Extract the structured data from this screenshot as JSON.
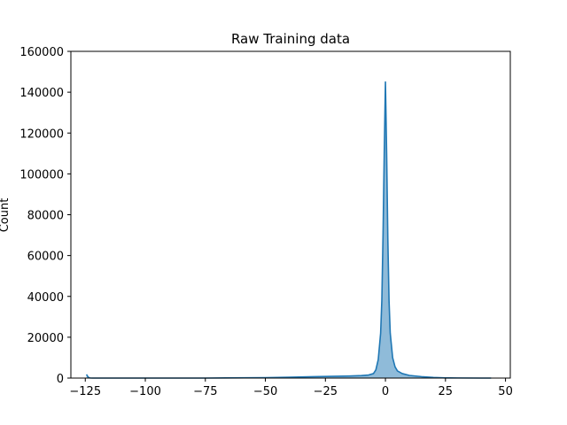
{
  "chart_data": {
    "type": "area",
    "title": "Raw Training data",
    "xlabel": "",
    "ylabel": "Count",
    "xlim": [
      -131,
      52
    ],
    "ylim": [
      0,
      160000
    ],
    "xticks": [
      -125,
      -100,
      -75,
      -50,
      -25,
      0,
      25,
      50
    ],
    "xtick_labels": [
      "−125",
      "−100",
      "−75",
      "−50",
      "−25",
      "0",
      "25",
      "50"
    ],
    "yticks": [
      0,
      20000,
      40000,
      60000,
      80000,
      100000,
      120000,
      140000,
      160000
    ],
    "ytick_labels": [
      "0",
      "20000",
      "40000",
      "60000",
      "80000",
      "100000",
      "120000",
      "140000",
      "160000"
    ],
    "grid": false,
    "series": [
      {
        "color": "#1f77b4",
        "fill_color": "#1f77b4",
        "x": [
          -124.5,
          -124,
          -123.5,
          -123,
          -122,
          -120,
          -100,
          -75,
          -50,
          -40,
          -30,
          -20,
          -15,
          -10,
          -7,
          -5,
          -4,
          -3,
          -2,
          -1.5,
          -1,
          -0.5,
          0,
          0.5,
          1,
          1.5,
          2,
          3,
          4,
          5,
          7,
          10,
          15,
          20,
          25,
          30,
          40,
          44
        ],
        "y": [
          1800,
          800,
          200,
          50,
          0,
          0,
          0,
          0,
          200,
          400,
          700,
          900,
          1000,
          1200,
          1500,
          2200,
          4000,
          9000,
          22000,
          38000,
          70000,
          110000,
          145000,
          110000,
          68000,
          38000,
          22000,
          10000,
          5500,
          3500,
          2200,
          1300,
          700,
          300,
          100,
          50,
          0,
          0
        ]
      }
    ]
  }
}
